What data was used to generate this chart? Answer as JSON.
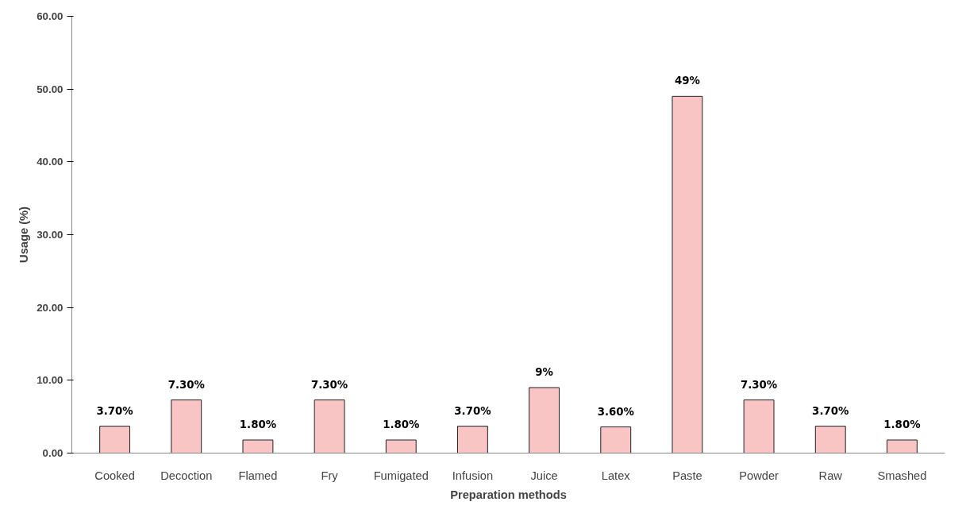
{
  "chart_data": {
    "type": "bar",
    "xlabel": "Preparation methods",
    "ylabel": "Usage (%)",
    "categories": [
      "Cooked",
      "Decoction",
      "Flamed",
      "Fry",
      "Fumigated",
      "Infusion",
      "Juice",
      "Latex",
      "Paste",
      "Powder",
      "Raw",
      "Smashed"
    ],
    "values": [
      3.7,
      7.3,
      1.8,
      7.3,
      1.8,
      3.7,
      9,
      3.6,
      49,
      7.3,
      3.7,
      1.8
    ],
    "value_labels": [
      "3.70%",
      "7.30%",
      "1.80%",
      "7.30%",
      "1.80%",
      "3.70%",
      "9%",
      "3.60%",
      "49%",
      "7.30%",
      "3.70%",
      "1.80%"
    ],
    "color": "#f9c4c4",
    "ylim": [
      0,
      60
    ],
    "yticks": [
      {
        "value": 0,
        "label": "0.00"
      },
      {
        "value": 10,
        "label": "10.00"
      },
      {
        "value": 20,
        "label": "20.00"
      },
      {
        "value": 30,
        "label": "30.00"
      },
      {
        "value": 40,
        "label": "40.00"
      },
      {
        "value": 50,
        "label": "50.00"
      },
      {
        "value": 60,
        "label": "60.00"
      }
    ],
    "grid": false
  }
}
